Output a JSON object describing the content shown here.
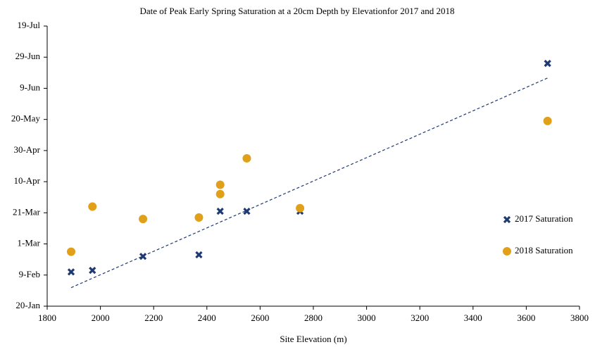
{
  "chart_data": {
    "type": "scatter",
    "title": "Date of Peak Early Spring Saturation at a 20cm Depth by Elevationfor 2017 and 2018",
    "xlabel": "Site Elevation (m)",
    "xlim": [
      1800,
      3800
    ],
    "xticks": [
      1800,
      2000,
      2200,
      2400,
      2600,
      2800,
      3000,
      3200,
      3400,
      3600,
      3800
    ],
    "ylim": [
      20,
      200
    ],
    "yticks": [
      {
        "value": 20,
        "label": "20-Jan"
      },
      {
        "value": 40,
        "label": "9-Feb"
      },
      {
        "value": 60,
        "label": "1-Mar"
      },
      {
        "value": 80,
        "label": "21-Mar"
      },
      {
        "value": 100,
        "label": "10-Apr"
      },
      {
        "value": 120,
        "label": "30-Apr"
      },
      {
        "value": 140,
        "label": "20-May"
      },
      {
        "value": 160,
        "label": "9-Jun"
      },
      {
        "value": 180,
        "label": "29-Jun"
      },
      {
        "value": 200,
        "label": "19-Jul"
      }
    ],
    "grid": false,
    "legend": "right",
    "series": [
      {
        "name": "2017 Saturation",
        "color": "#1f3a73",
        "marker": "x",
        "trendline": true,
        "x": [
          1890,
          1970,
          2160,
          2370,
          2450,
          2550,
          2750,
          3680
        ],
        "values": [
          42,
          43,
          52,
          53,
          81,
          81,
          81,
          176
        ]
      },
      {
        "name": "2018 Saturation",
        "color": "#e1a01a",
        "marker": "circle",
        "trendline": false,
        "x": [
          1890,
          1970,
          2160,
          2370,
          2450,
          2450,
          2550,
          2750,
          3680
        ],
        "values": [
          55,
          84,
          76,
          77,
          98,
          92,
          115,
          83,
          139
        ]
      }
    ]
  }
}
